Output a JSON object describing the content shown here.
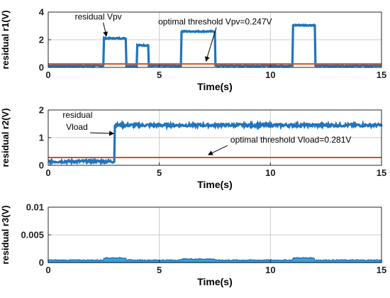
{
  "colors": {
    "residual": "#1f74bd",
    "threshold": "#d94f1e",
    "grid": "#cccccc",
    "axis": "#262626",
    "fill_r3": "#3aa0d8"
  },
  "chart_data": [
    {
      "type": "line",
      "ylabel": "residual r1(V)",
      "xlabel": "Time(s)",
      "xlim": [
        0,
        15
      ],
      "ylim": [
        0,
        4
      ],
      "xticks": [
        "0",
        "5",
        "10",
        "15"
      ],
      "xtick_values": [
        0,
        5,
        10,
        15
      ],
      "yticks": [
        "0",
        "2",
        "4"
      ],
      "ytick_values": [
        0,
        2,
        4
      ],
      "grid": true,
      "series": [
        {
          "kind": "residual",
          "baseline": 0.12,
          "noise": 0.08,
          "pulses": [
            {
              "x0": 2.5,
              "x1": 3.5,
              "y": 2.1
            },
            {
              "x0": 4.0,
              "x1": 4.5,
              "y": 1.6
            },
            {
              "x0": 6.0,
              "x1": 7.5,
              "y": 2.6
            },
            {
              "x0": 11.0,
              "x1": 12.0,
              "y": 3.05
            }
          ]
        },
        {
          "kind": "threshold",
          "y": 0.247
        }
      ],
      "annotations": [
        {
          "text": "residual Vpv",
          "tx": 1.2,
          "ty": 3.45,
          "ax": 2.62,
          "ay": 2.25
        },
        {
          "text": "optimal threshold Vpv=0.247V",
          "tx": 4.95,
          "ty": 3.1,
          "ax": 7.1,
          "ay": 0.45
        }
      ]
    },
    {
      "type": "line",
      "ylabel": "residual r2(V)",
      "xlabel": "Time(s)",
      "xlim": [
        0,
        15
      ],
      "ylim": [
        0,
        2
      ],
      "xticks": [
        "0",
        "5",
        "10",
        "15"
      ],
      "xtick_values": [
        0,
        5,
        10,
        15
      ],
      "yticks": [
        "0",
        "1",
        "2"
      ],
      "ytick_values": [
        0,
        1,
        2
      ],
      "grid": true,
      "series": [
        {
          "kind": "residual",
          "baseline": 0.14,
          "noise": 0.1,
          "pulses": [
            {
              "x0": 3.0,
              "x1": 15.0,
              "y": 1.45
            }
          ]
        },
        {
          "kind": "threshold",
          "y": 0.281
        }
      ],
      "annotations": [
        {
          "text": "residual",
          "tx": 0.65,
          "ty": 1.72,
          "ax": null,
          "ay": null
        },
        {
          "text": "Vload",
          "tx": 0.8,
          "ty": 1.28,
          "ax": 2.95,
          "ay": 1.15
        },
        {
          "text": "optimal threshold Vload=0.281V",
          "tx": 8.2,
          "ty": 0.82,
          "ax": 7.2,
          "ay": 0.38
        }
      ]
    },
    {
      "type": "area",
      "ylabel": "residual r3(V)",
      "xlabel": "Time(s)",
      "xlim": [
        0,
        15
      ],
      "ylim": [
        0,
        0.01
      ],
      "xticks": [
        "0",
        "5",
        "10",
        "15"
      ],
      "xtick_values": [
        0,
        5,
        10,
        15
      ],
      "yticks": [
        "0",
        "0.005",
        "0.01"
      ],
      "ytick_values": [
        0,
        0.005,
        0.01
      ],
      "grid": true,
      "series": [
        {
          "kind": "residual-band",
          "segments": [
            {
              "x0": 0.0,
              "x1": 2.5,
              "y": 0.0004
            },
            {
              "x0": 2.5,
              "x1": 3.5,
              "y": 0.0008
            },
            {
              "x0": 3.5,
              "x1": 6.0,
              "y": 0.0004
            },
            {
              "x0": 6.0,
              "x1": 7.5,
              "y": 0.0006
            },
            {
              "x0": 7.5,
              "x1": 11.0,
              "y": 0.0004
            },
            {
              "x0": 11.0,
              "x1": 12.0,
              "y": 0.0008
            },
            {
              "x0": 12.0,
              "x1": 15.0,
              "y": 0.0004
            }
          ]
        }
      ],
      "annotations": []
    }
  ]
}
